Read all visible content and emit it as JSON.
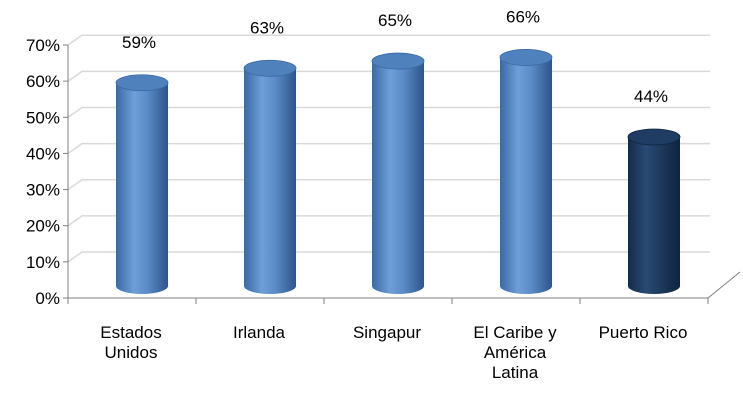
{
  "chart_data": {
    "type": "bar",
    "categories": [
      "Estados Unidos",
      "Irlanda",
      "Singapur",
      "El Caribe y América Latina",
      "Puerto Rico"
    ],
    "category_label_lines": [
      [
        "Estados",
        "Unidos"
      ],
      [
        "Irlanda"
      ],
      [
        "Singapur"
      ],
      [
        "El Caribe y",
        "América",
        "Latina"
      ],
      [
        "Puerto Rico"
      ]
    ],
    "values": [
      59,
      63,
      65,
      66,
      44
    ],
    "value_labels": [
      "59%",
      "63%",
      "65%",
      "66%",
      "44%"
    ],
    "y_ticks": [
      "0%",
      "10%",
      "20%",
      "30%",
      "40%",
      "50%",
      "60%",
      "70%"
    ],
    "ylim": [
      0,
      70
    ],
    "grid": true,
    "style": "3d-cylinder",
    "title": "",
    "xlabel": "",
    "ylabel": "",
    "colors": {
      "bar": "#4f81bd",
      "bar_highlight": "#17375e",
      "grid": "#d9d9d9",
      "axis": "#808080"
    },
    "highlight_category": "Puerto Rico"
  }
}
